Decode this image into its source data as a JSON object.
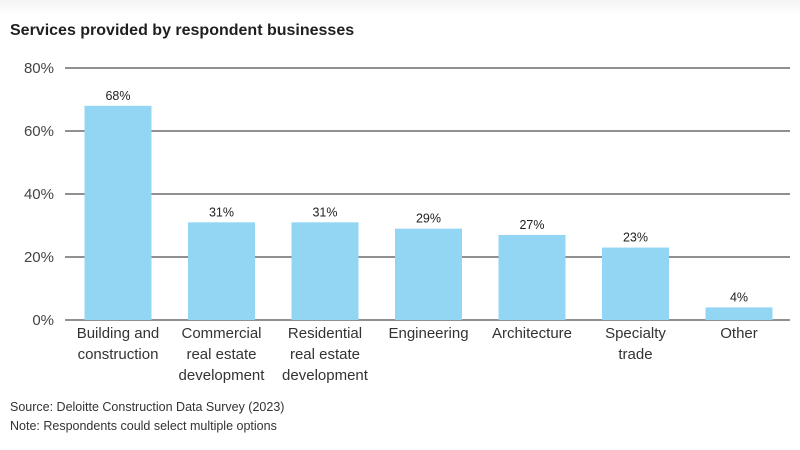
{
  "chart_data": {
    "type": "bar",
    "title": "Services provided by respondent businesses",
    "categories": [
      [
        "Building and",
        "construction"
      ],
      [
        "Commercial",
        "real estate",
        "development"
      ],
      [
        "Residential",
        "real estate",
        "development"
      ],
      [
        "Engineering"
      ],
      [
        "Architecture"
      ],
      [
        "Specialty",
        "trade"
      ],
      [
        "Other"
      ]
    ],
    "values": [
      68,
      31,
      31,
      29,
      27,
      23,
      4
    ],
    "value_labels": [
      "68%",
      "31%",
      "31%",
      "29%",
      "27%",
      "23%",
      "4%"
    ],
    "ylim": [
      0,
      80
    ],
    "yticks": [
      0,
      20,
      40,
      60,
      80
    ],
    "ytick_labels": [
      "0%",
      "20%",
      "40%",
      "60%",
      "80%"
    ],
    "xlabel": "",
    "ylabel": "",
    "grid": true,
    "bar_color": "#92d6f4",
    "gridline_color": "#222222"
  },
  "footer": {
    "source": "Source: Deloitte Construction Data Survey (2023)",
    "note": "Note: Respondents could select multiple options"
  }
}
